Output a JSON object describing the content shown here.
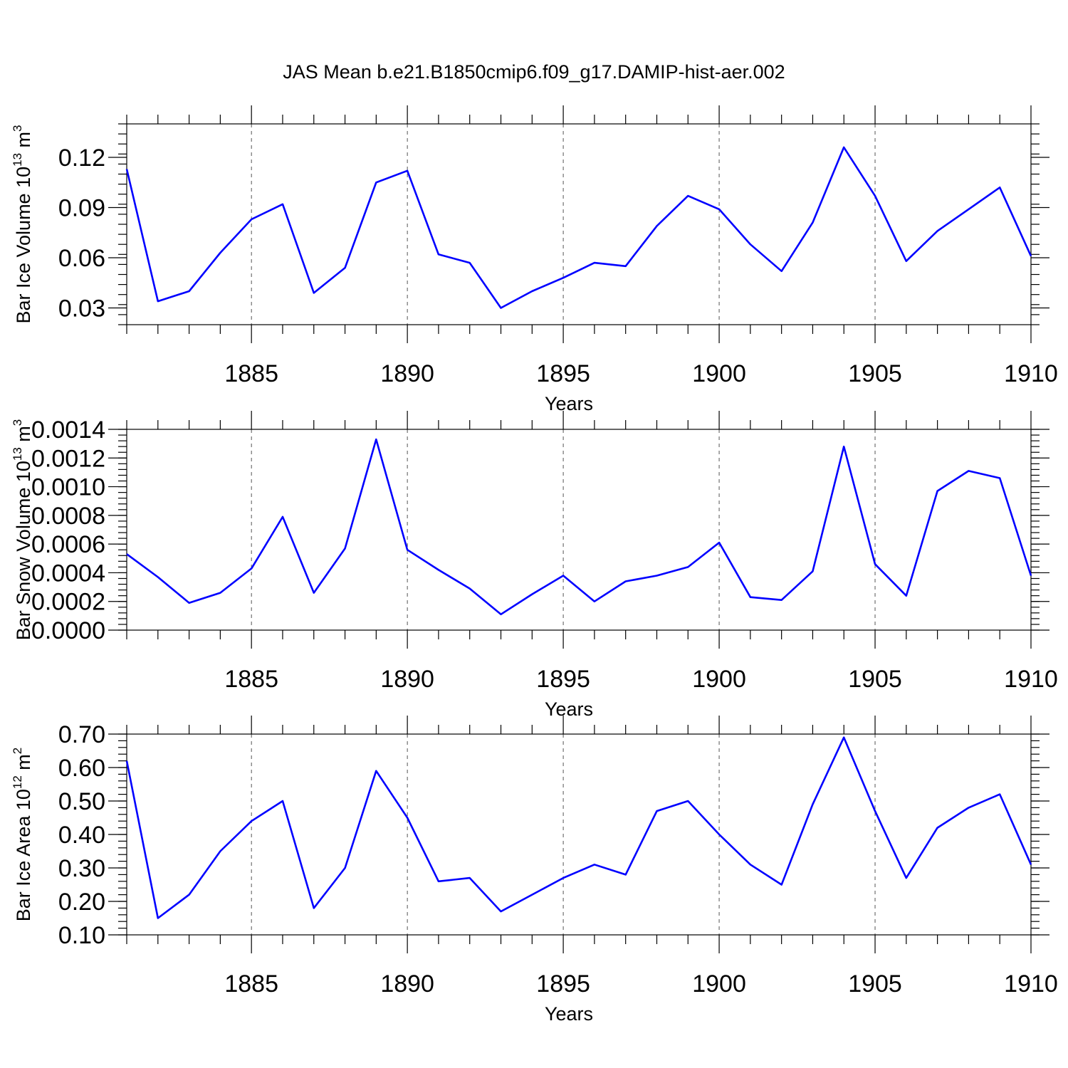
{
  "figure": {
    "title": "JAS Mean b.e21.B1850cmip6.f09_g17.DAMIP-hist-aer.002"
  },
  "colors": {
    "series": "#0000ff",
    "axis": "#000000",
    "grid": "#555555"
  },
  "chart_data": [
    {
      "type": "line",
      "xlabel": "Years",
      "ylabel": {
        "main": "Bar Ice Volume 10",
        "exp": "13",
        "unit": " m",
        "unit_exp": "3"
      },
      "xlim": [
        1881,
        1910
      ],
      "ylim": [
        0.02,
        0.14
      ],
      "xticks": [
        1885,
        1890,
        1895,
        1900,
        1905,
        1910
      ],
      "yticks": [
        0.03,
        0.06,
        0.09,
        0.12
      ],
      "yticklabels": [
        "0.03",
        "0.06",
        "0.09",
        "0.12"
      ],
      "x": [
        1881,
        1882,
        1883,
        1884,
        1885,
        1886,
        1887,
        1888,
        1889,
        1890,
        1891,
        1892,
        1893,
        1894,
        1895,
        1896,
        1897,
        1898,
        1899,
        1900,
        1901,
        1902,
        1903,
        1904,
        1905,
        1906,
        1907,
        1908,
        1909,
        1910
      ],
      "series": [
        {
          "values": [
            0.113,
            0.034,
            0.04,
            0.063,
            0.083,
            0.092,
            0.039,
            0.054,
            0.105,
            0.112,
            0.062,
            0.057,
            0.03,
            0.04,
            0.048,
            0.057,
            0.055,
            0.079,
            0.097,
            0.089,
            0.068,
            0.052,
            0.081,
            0.126,
            0.097,
            0.058,
            0.076,
            0.089,
            0.102,
            0.061
          ]
        }
      ],
      "grid": "x-dashed"
    },
    {
      "type": "line",
      "xlabel": "Years",
      "ylabel": {
        "main": "Bar Snow Volume 10",
        "exp": "13",
        "unit": " m",
        "unit_exp": "3"
      },
      "xlim": [
        1881,
        1910
      ],
      "ylim": [
        0.0,
        0.0014
      ],
      "xticks": [
        1885,
        1890,
        1895,
        1900,
        1905,
        1910
      ],
      "yticks": [
        0.0,
        0.0002,
        0.0004,
        0.0006,
        0.0008,
        0.001,
        0.0012,
        0.0014
      ],
      "yticklabels": [
        "0.0000",
        "0.0002",
        "0.0004",
        "0.0006",
        "0.0008",
        "0.0010",
        "0.0012",
        "0.0014"
      ],
      "x": [
        1881,
        1882,
        1883,
        1884,
        1885,
        1886,
        1887,
        1888,
        1889,
        1890,
        1891,
        1892,
        1893,
        1894,
        1895,
        1896,
        1897,
        1898,
        1899,
        1900,
        1901,
        1902,
        1903,
        1904,
        1905,
        1906,
        1907,
        1908,
        1909,
        1910
      ],
      "series": [
        {
          "values": [
            0.00053,
            0.00037,
            0.00019,
            0.00026,
            0.00043,
            0.00079,
            0.00026,
            0.00057,
            0.00133,
            0.00056,
            0.00042,
            0.00029,
            0.00011,
            0.00025,
            0.00038,
            0.0002,
            0.00034,
            0.00038,
            0.00044,
            0.00061,
            0.00023,
            0.00021,
            0.00041,
            0.00128,
            0.00046,
            0.00024,
            0.00097,
            0.00111,
            0.00106,
            0.00038
          ]
        }
      ],
      "grid": "x-dashed"
    },
    {
      "type": "line",
      "xlabel": "Years",
      "ylabel": {
        "main": "Bar Ice Area 10",
        "exp": "12",
        "unit": " m",
        "unit_exp": "2"
      },
      "xlim": [
        1881,
        1910
      ],
      "ylim": [
        0.1,
        0.7
      ],
      "xticks": [
        1885,
        1890,
        1895,
        1900,
        1905,
        1910
      ],
      "yticks": [
        0.1,
        0.2,
        0.3,
        0.4,
        0.5,
        0.6,
        0.7
      ],
      "yticklabels": [
        "0.10",
        "0.20",
        "0.30",
        "0.40",
        "0.50",
        "0.60",
        "0.70"
      ],
      "x": [
        1881,
        1882,
        1883,
        1884,
        1885,
        1886,
        1887,
        1888,
        1889,
        1890,
        1891,
        1892,
        1893,
        1894,
        1895,
        1896,
        1897,
        1898,
        1899,
        1900,
        1901,
        1902,
        1903,
        1904,
        1905,
        1906,
        1907,
        1908,
        1909,
        1910
      ],
      "series": [
        {
          "values": [
            0.62,
            0.15,
            0.22,
            0.35,
            0.44,
            0.5,
            0.18,
            0.3,
            0.59,
            0.45,
            0.26,
            0.27,
            0.17,
            0.22,
            0.27,
            0.31,
            0.28,
            0.47,
            0.5,
            0.4,
            0.31,
            0.25,
            0.49,
            0.69,
            0.47,
            0.27,
            0.42,
            0.48,
            0.52,
            0.31
          ]
        }
      ],
      "grid": "x-dashed"
    }
  ]
}
